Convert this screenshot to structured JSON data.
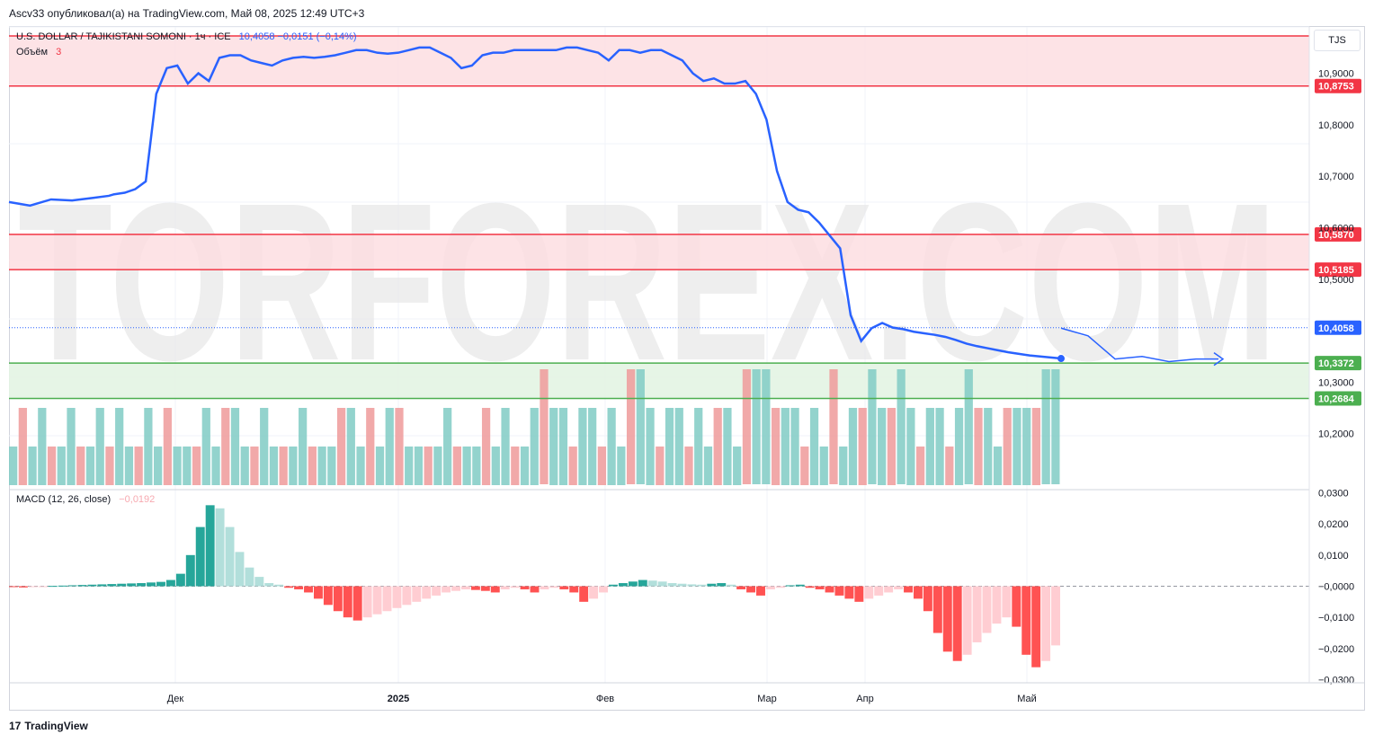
{
  "header": {
    "published": "Ascv33 опубликовал(а) на TradingView.com, Май 08, 2025 12:49 UTC+3"
  },
  "legend": {
    "symbol": "U.S. DOLLAR / TAJIKISTANI SOMONI · 1ч · ICE",
    "values": "10,4058  −0,0151 (−0,14%)",
    "volume_label": "Объём",
    "volume_value": "3",
    "macd_label": "MACD (12, 26, close)",
    "macd_value": "−0,0192"
  },
  "currency_button": "TJS",
  "watermark": "TORFOREX.COM",
  "footer": {
    "brand": "TradingView"
  },
  "colors": {
    "price": "#2962ff",
    "resistance": "#f23645",
    "support": "#4caf50",
    "vol_up": "#80cbc4",
    "vol_down": "#ef9a9a",
    "macd_up_strong": "#26a69a",
    "macd_up_weak": "#b2dfdb",
    "macd_down_strong": "#ff5252",
    "macd_down_weak": "#ffcdd2"
  },
  "chart_data": [
    {
      "type": "line",
      "series": [
        {
          "x": [
            0,
            4,
            8,
            12,
            16,
            19,
            20,
            22,
            24,
            26,
            28,
            30,
            32,
            34,
            36,
            38,
            40,
            42,
            44,
            46,
            48,
            50,
            52,
            54,
            56,
            58,
            60,
            62,
            64,
            66,
            68,
            70,
            72,
            74,
            76,
            78,
            80,
            82,
            84,
            86,
            88,
            90,
            92,
            94,
            96,
            98,
            100,
            102,
            104,
            106,
            108,
            110,
            112,
            114,
            116,
            118,
            120,
            122,
            124,
            126,
            128,
            130,
            132,
            134,
            136,
            138,
            140,
            142,
            144,
            146,
            148,
            150,
            152,
            154,
            156,
            158,
            160,
            162,
            164,
            166,
            168,
            170,
            172,
            174,
            176,
            178,
            180,
            182,
            184,
            186,
            188,
            190,
            192,
            194,
            196,
            198,
            200
          ],
          "values": [
            10.65,
            10.643,
            10.655,
            10.653,
            10.658,
            10.662,
            10.665,
            10.668,
            10.675,
            10.69,
            10.86,
            10.91,
            10.915,
            10.88,
            10.9,
            10.885,
            10.93,
            10.935,
            10.935,
            10.925,
            10.92,
            10.915,
            10.925,
            10.93,
            10.932,
            10.93,
            10.932,
            10.935,
            10.94,
            10.945,
            10.945,
            10.94,
            10.938,
            10.94,
            10.945,
            10.95,
            10.95,
            10.94,
            10.93,
            10.91,
            10.915,
            10.935,
            10.94,
            10.94,
            10.945,
            10.945,
            10.945,
            10.945,
            10.945,
            10.95,
            10.95,
            10.945,
            10.94,
            10.925,
            10.945,
            10.945,
            10.94,
            10.945,
            10.945,
            10.935,
            10.925,
            10.9,
            10.885,
            10.89,
            10.88,
            10.88,
            10.885,
            10.86,
            10.81,
            10.71,
            10.65,
            10.635,
            10.63,
            10.61,
            10.585,
            10.56,
            10.43,
            10.38,
            10.405,
            10.415,
            10.406,
            10.403,
            10.398,
            10.395,
            10.392,
            10.388,
            10.382,
            10.375,
            10.37,
            10.366,
            10.362,
            10.358,
            10.355,
            10.352,
            10.35,
            10.348,
            10.346
          ]
        }
      ],
      "horizontal_levels": [
        {
          "price": 10.8753,
          "label": "10,8753",
          "color": "resistance"
        },
        {
          "price": 10.587,
          "label": "10,5870",
          "color": "resistance"
        },
        {
          "price": 10.5185,
          "label": "10,5185",
          "color": "resistance"
        },
        {
          "price": 10.3372,
          "label": "10,3372",
          "color": "support"
        },
        {
          "price": 10.2684,
          "label": "10,2684",
          "color": "support"
        }
      ],
      "last_price": {
        "price": 10.4058,
        "label": "10,4058"
      },
      "y_ticks": [
        "10,9000",
        "10,8000",
        "10,7000",
        "10,6000",
        "10,5000",
        "10,3000",
        "10,2000"
      ],
      "ylim": [
        10.1,
        10.99
      ],
      "x_ticks": [
        "Дек",
        "2025",
        "Фев",
        "Мар",
        "Апр",
        "Май"
      ],
      "forecast": [
        [
          10.405,
          10.38
        ],
        [
          10.355,
          10.35
        ],
        [
          10.355,
          10.345
        ],
        [
          10.35,
          10.345
        ]
      ]
    },
    {
      "type": "bar",
      "title": "MACD (12, 26, close)",
      "values": [
        -0.0002,
        -0.0004,
        -0.0003,
        -0.0002,
        0.0001,
        0.0002,
        0.0003,
        0.0004,
        0.0005,
        0.0006,
        0.0007,
        0.0008,
        0.0009,
        0.001,
        0.0012,
        0.0014,
        0.002,
        0.004,
        0.01,
        0.019,
        0.026,
        0.025,
        0.019,
        0.011,
        0.006,
        0.003,
        0.001,
        0.0005,
        -0.0005,
        -0.001,
        -0.002,
        -0.004,
        -0.006,
        -0.008,
        -0.01,
        -0.011,
        -0.01,
        -0.009,
        -0.008,
        -0.007,
        -0.006,
        -0.005,
        -0.004,
        -0.003,
        -0.002,
        -0.0015,
        -0.001,
        -0.0012,
        -0.0015,
        -0.002,
        -0.001,
        -0.0005,
        -0.001,
        -0.002,
        -0.001,
        -0.0005,
        -0.001,
        -0.002,
        -0.005,
        -0.004,
        -0.002,
        0.0005,
        0.001,
        0.0015,
        0.002,
        0.0018,
        0.0015,
        0.001,
        0.0008,
        0.0006,
        0.0005,
        0.0008,
        0.001,
        0.0005,
        -0.001,
        -0.002,
        -0.003,
        -0.001,
        -0.0005,
        0.0003,
        0.0005,
        -0.0005,
        -0.001,
        -0.002,
        -0.003,
        -0.004,
        -0.005,
        -0.004,
        -0.003,
        -0.002,
        -0.001,
        -0.002,
        -0.004,
        -0.008,
        -0.015,
        -0.021,
        -0.024,
        -0.022,
        -0.018,
        -0.015,
        -0.012,
        -0.01,
        -0.013,
        -0.022,
        -0.026,
        -0.024,
        -0.019
      ],
      "y_ticks": [
        "0,0300",
        "0,0200",
        "0,0100",
        "−0,0000",
        "−0,0100",
        "−0,0200",
        "−0,0300"
      ],
      "ylim": [
        -0.031,
        0.031
      ]
    },
    {
      "type": "bar",
      "title": "Объём",
      "values": [
        1,
        2,
        1,
        2,
        1,
        1,
        2,
        1,
        1,
        2,
        1,
        2,
        1,
        1,
        2,
        1,
        2,
        1,
        1,
        1,
        2,
        1,
        2,
        2,
        1,
        1,
        2,
        1,
        1,
        1,
        2,
        1,
        1,
        1,
        2,
        2,
        1,
        2,
        1,
        2,
        2,
        1,
        1,
        1,
        1,
        2,
        1,
        1,
        1,
        2,
        1,
        2,
        1,
        1,
        2,
        3,
        2,
        2,
        1,
        2,
        2,
        1,
        2,
        1,
        3,
        3,
        2,
        1,
        2,
        2,
        1,
        2,
        1,
        2,
        2,
        1,
        3,
        3,
        3,
        2,
        2,
        2,
        1,
        2,
        1,
        3,
        1,
        2,
        2,
        3,
        2,
        2,
        3,
        2,
        1,
        2,
        2,
        1,
        2,
        3,
        2,
        2,
        1,
        2,
        2,
        2,
        2,
        3,
        3
      ]
    }
  ]
}
